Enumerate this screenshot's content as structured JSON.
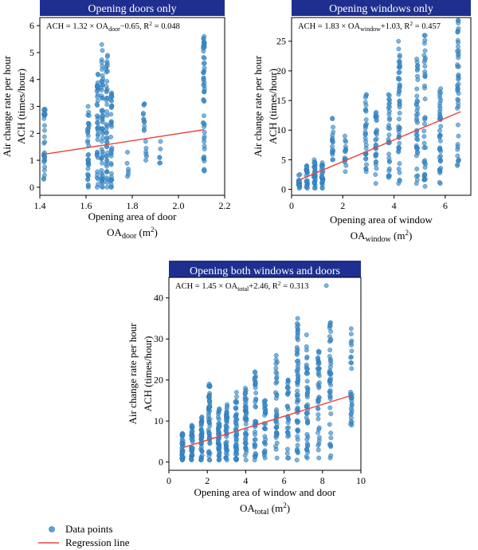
{
  "chart_data": [
    {
      "type": "scatter",
      "title": "Opening doors only",
      "equation": {
        "lhs": "ACH = 1.32 × OA",
        "sub": "door",
        "rhs": "−0.65, R",
        "sup": "2",
        "tail": " = 0.048"
      },
      "xlabel": {
        "line1": "Opening area of door",
        "base": "OA",
        "sub": "door",
        "unit": " (m",
        "sup": "2",
        "close": ")"
      },
      "ylabel": {
        "line1": "Air change rate per hour",
        "line2": "ACH (times/hour)"
      },
      "xlim": [
        1.4,
        2.2
      ],
      "ylim": [
        -0.3,
        6.3
      ],
      "xticks": [
        1.4,
        1.6,
        1.8,
        2.0,
        2.2
      ],
      "xtick_labels": [
        "1.4",
        "1.6",
        "1.8",
        "2.0",
        "2.2"
      ],
      "yticks": [
        0,
        1,
        2,
        3,
        4,
        5,
        6
      ],
      "ytick_labels": [
        "0",
        "1",
        "2",
        "3",
        "4",
        "5",
        "6"
      ],
      "clusters": [
        {
          "x": 1.42,
          "ymin": 0.3,
          "ymax": 2.9,
          "n": 30
        },
        {
          "x": 1.61,
          "ymin": 0.0,
          "ymax": 3.0,
          "n": 35
        },
        {
          "x": 1.65,
          "ymin": 0.0,
          "ymax": 4.2,
          "n": 40
        },
        {
          "x": 1.67,
          "ymin": 0.0,
          "ymax": 5.3,
          "n": 50
        },
        {
          "x": 1.69,
          "ymin": 0.0,
          "ymax": 4.9,
          "n": 45
        },
        {
          "x": 1.71,
          "ymin": 0.0,
          "ymax": 3.5,
          "n": 35
        },
        {
          "x": 1.78,
          "ymin": 0.4,
          "ymax": 1.3,
          "n": 6
        },
        {
          "x": 1.85,
          "ymin": 2.1,
          "ymax": 3.1,
          "n": 12
        },
        {
          "x": 1.86,
          "ymin": 1.0,
          "ymax": 1.7,
          "n": 6
        },
        {
          "x": 1.92,
          "ymin": 0.9,
          "ymax": 1.7,
          "n": 6
        },
        {
          "x": 2.11,
          "ymin": 0.6,
          "ymax": 5.6,
          "n": 55
        }
      ],
      "regression": {
        "slope": 1.32,
        "intercept": -0.65,
        "x": [
          1.42,
          2.11
        ]
      }
    },
    {
      "type": "scatter",
      "title": "Opening windows only",
      "equation": {
        "lhs": "ACH = 1.83 × OA",
        "sub": "window",
        "rhs": "+1.03, R",
        "sup": "2",
        "tail": " = 0.457"
      },
      "xlabel": {
        "line1": "Opening area of window",
        "base": "OA",
        "sub": "window",
        "unit": " (m",
        "sup": "2",
        "close": ")"
      },
      "ylabel": {
        "line1": "Air change rate per hour",
        "line2": "ACH (times/hour)"
      },
      "xlim": [
        0,
        7
      ],
      "ylim": [
        -1,
        29
      ],
      "xticks": [
        0,
        2,
        4,
        6
      ],
      "xtick_labels": [
        "0",
        "2",
        "4",
        "6"
      ],
      "yticks": [
        0,
        5,
        10,
        15,
        20,
        25
      ],
      "ytick_labels": [
        "0",
        "5",
        "10",
        "15",
        "20",
        "25"
      ],
      "clusters": [
        {
          "x": 0.3,
          "ymin": 0.2,
          "ymax": 2.5,
          "n": 20
        },
        {
          "x": 0.6,
          "ymin": 0.2,
          "ymax": 4.0,
          "n": 25
        },
        {
          "x": 0.9,
          "ymin": 0.2,
          "ymax": 5.0,
          "n": 30
        },
        {
          "x": 1.2,
          "ymin": 0.2,
          "ymax": 4.5,
          "n": 25
        },
        {
          "x": 1.6,
          "ymin": 5.0,
          "ymax": 12.0,
          "n": 18
        },
        {
          "x": 2.1,
          "ymin": 3.0,
          "ymax": 9.0,
          "n": 15
        },
        {
          "x": 2.9,
          "ymin": 3.0,
          "ymax": 16.0,
          "n": 30
        },
        {
          "x": 3.3,
          "ymin": 1.0,
          "ymax": 13.0,
          "n": 30
        },
        {
          "x": 3.8,
          "ymin": 2.0,
          "ymax": 16.0,
          "n": 30
        },
        {
          "x": 4.2,
          "ymin": 1.0,
          "ymax": 25.0,
          "n": 50
        },
        {
          "x": 4.9,
          "ymin": 1.0,
          "ymax": 22.0,
          "n": 40
        },
        {
          "x": 5.2,
          "ymin": 0.5,
          "ymax": 26.0,
          "n": 40
        },
        {
          "x": 5.8,
          "ymin": 1.0,
          "ymax": 17.0,
          "n": 40
        },
        {
          "x": 6.5,
          "ymin": 4.0,
          "ymax": 28.5,
          "n": 45
        }
      ],
      "regression": {
        "slope": 1.83,
        "intercept": 1.03,
        "x": [
          0.3,
          6.6
        ]
      }
    },
    {
      "type": "scatter",
      "title": "Opening both windows and doors",
      "equation": {
        "lhs": "ACH = 1.45 × OA",
        "sub": "total",
        "rhs": "+2.46, R",
        "sup": "2",
        "tail": " = 0.313"
      },
      "xlabel": {
        "line1": "Opening area of window and door",
        "base": "OA",
        "sub": "total",
        "unit": " (m",
        "sup": "2",
        "close": ")"
      },
      "ylabel": {
        "line1": "Air change rate per hour",
        "line2": "ACH (times/hour)"
      },
      "xlim": [
        0,
        10
      ],
      "ylim": [
        -2,
        45
      ],
      "xticks": [
        0,
        2,
        4,
        6,
        8,
        10
      ],
      "xtick_labels": [
        "0",
        "2",
        "4",
        "6",
        "8",
        "10"
      ],
      "yticks": [
        0,
        10,
        20,
        30,
        40
      ],
      "ytick_labels": [
        "0",
        "10",
        "20",
        "30",
        "40"
      ],
      "clusters": [
        {
          "x": 0.7,
          "ymin": 0.5,
          "ymax": 7.0,
          "n": 30
        },
        {
          "x": 1.2,
          "ymin": 0.5,
          "ymax": 9.0,
          "n": 35
        },
        {
          "x": 1.7,
          "ymin": 0.5,
          "ymax": 11.0,
          "n": 40
        },
        {
          "x": 2.1,
          "ymin": 0.5,
          "ymax": 19.0,
          "n": 50
        },
        {
          "x": 2.6,
          "ymin": 0.5,
          "ymax": 13.0,
          "n": 45
        },
        {
          "x": 3.0,
          "ymin": 0.5,
          "ymax": 14.0,
          "n": 45
        },
        {
          "x": 3.5,
          "ymin": 0.5,
          "ymax": 17.0,
          "n": 45
        },
        {
          "x": 4.0,
          "ymin": 0.5,
          "ymax": 18.0,
          "n": 45
        },
        {
          "x": 4.5,
          "ymin": 0.5,
          "ymax": 22.0,
          "n": 40
        },
        {
          "x": 5.0,
          "ymin": 1.0,
          "ymax": 15.0,
          "n": 30
        },
        {
          "x": 5.6,
          "ymin": 1.0,
          "ymax": 26.0,
          "n": 40
        },
        {
          "x": 6.2,
          "ymin": 1.0,
          "ymax": 20.0,
          "n": 30
        },
        {
          "x": 6.7,
          "ymin": 0.5,
          "ymax": 35.0,
          "n": 60
        },
        {
          "x": 7.2,
          "ymin": 1.0,
          "ymax": 31.0,
          "n": 45
        },
        {
          "x": 7.8,
          "ymin": 1.0,
          "ymax": 27.0,
          "n": 40
        },
        {
          "x": 8.4,
          "ymin": 1.0,
          "ymax": 34.0,
          "n": 45
        },
        {
          "x": 9.5,
          "ymin": 9.0,
          "ymax": 32.5,
          "n": 30
        }
      ],
      "outliers": [
        {
          "x": 8.2,
          "y": 43.0
        }
      ],
      "regression": {
        "slope": 1.45,
        "intercept": 2.46,
        "x": [
          0.7,
          9.5
        ]
      }
    }
  ],
  "legend": {
    "items": [
      {
        "label": "Data points",
        "kind": "marker"
      },
      {
        "label": "Regression line",
        "kind": "line"
      }
    ],
    "placement": "bottom-left"
  },
  "colors": {
    "point_fill": "#3a8ac6",
    "point_stroke": "#1f6fb0",
    "line": "#e8453c",
    "title_bg": "#1f2f8f",
    "title_text": "#ffffff"
  }
}
